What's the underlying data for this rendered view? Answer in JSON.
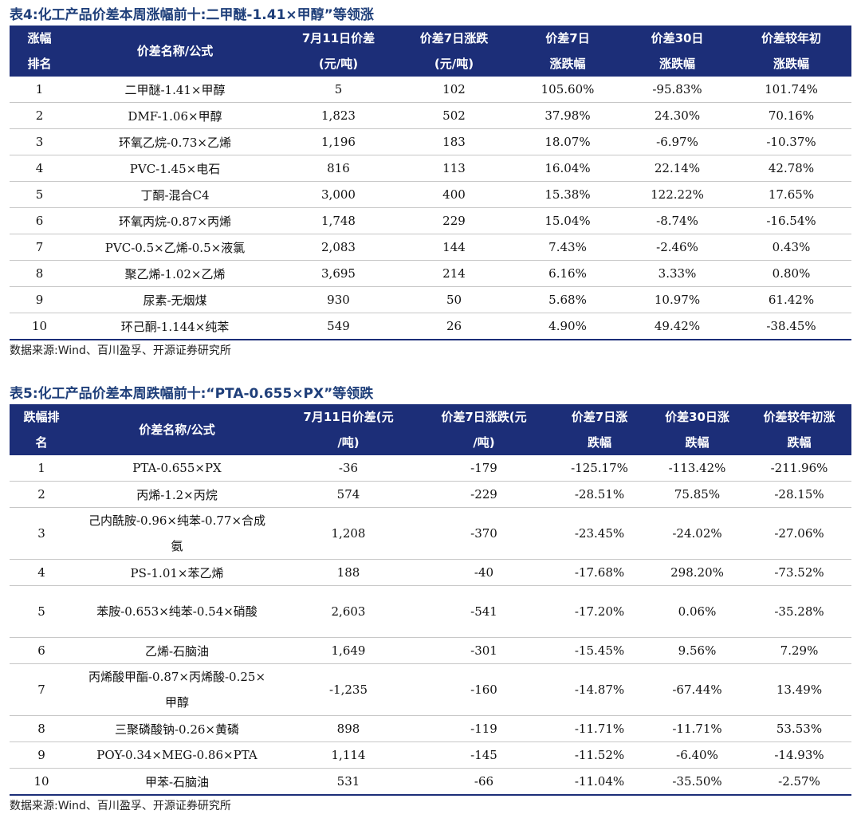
{
  "table4": {
    "caption": "表4:化工产品价差本周涨幅前十:二甲醚-1.41×甲醇”等领涨",
    "headers": {
      "rank_l1": "涨幅",
      "rank_l2": "排名",
      "name": "价差名称/公式",
      "spread_l1": "7月11日价差",
      "spread_l2": "(元/吨)",
      "chg7_l1": "价差7日涨跌",
      "chg7_l2": "(元/吨)",
      "pct7_l1": "价差7日",
      "pct7_l2": "涨跌幅",
      "pct30_l1": "价差30日",
      "pct30_l2": "涨跌幅",
      "ytd_l1": "价差较年初",
      "ytd_l2": "涨跌幅"
    },
    "rows": [
      {
        "rank": "1",
        "name": "二甲醚-1.41×甲醇",
        "spread": "5",
        "chg7": "102",
        "pct7": "105.60%",
        "pct30": "-95.83%",
        "ytd": "101.74%"
      },
      {
        "rank": "2",
        "name": "DMF-1.06×甲醇",
        "spread": "1,823",
        "chg7": "502",
        "pct7": "37.98%",
        "pct30": "24.30%",
        "ytd": "70.16%"
      },
      {
        "rank": "3",
        "name": "环氧乙烷-0.73×乙烯",
        "spread": "1,196",
        "chg7": "183",
        "pct7": "18.07%",
        "pct30": "-6.97%",
        "ytd": "-10.37%"
      },
      {
        "rank": "4",
        "name": "PVC-1.45×电石",
        "spread": "816",
        "chg7": "113",
        "pct7": "16.04%",
        "pct30": "22.14%",
        "ytd": "42.78%"
      },
      {
        "rank": "5",
        "name": "丁酮-混合C4",
        "spread": "3,000",
        "chg7": "400",
        "pct7": "15.38%",
        "pct30": "122.22%",
        "ytd": "17.65%"
      },
      {
        "rank": "6",
        "name": "环氧丙烷-0.87×丙烯",
        "spread": "1,748",
        "chg7": "229",
        "pct7": "15.04%",
        "pct30": "-8.74%",
        "ytd": "-16.54%"
      },
      {
        "rank": "7",
        "name": "PVC-0.5×乙烯-0.5×液氯",
        "spread": "2,083",
        "chg7": "144",
        "pct7": "7.43%",
        "pct30": "-2.46%",
        "ytd": "0.43%"
      },
      {
        "rank": "8",
        "name": "聚乙烯-1.02×乙烯",
        "spread": "3,695",
        "chg7": "214",
        "pct7": "6.16%",
        "pct30": "3.33%",
        "ytd": "0.80%"
      },
      {
        "rank": "9",
        "name": "尿素-无烟煤",
        "spread": "930",
        "chg7": "50",
        "pct7": "5.68%",
        "pct30": "10.97%",
        "ytd": "61.42%"
      },
      {
        "rank": "10",
        "name": "环己酮-1.144×纯苯",
        "spread": "549",
        "chg7": "26",
        "pct7": "4.90%",
        "pct30": "49.42%",
        "ytd": "-38.45%"
      }
    ],
    "source": "数据来源:Wind、百川盈孚、开源证券研究所"
  },
  "table5": {
    "caption": "表5:化工产品价差本周跌幅前十:“PTA-0.655×PX”等领跌",
    "headers": {
      "rank_l1": "跌幅排",
      "rank_l2": "名",
      "name": "价差名称/公式",
      "spread_l1": "7月11日价差(元",
      "spread_l2": "/吨)",
      "chg7_l1": "价差7日涨跌(元",
      "chg7_l2": "/吨)",
      "pct7_l1": "价差7日涨",
      "pct7_l2": "跌幅",
      "pct30_l1": "价差30日涨",
      "pct30_l2": "跌幅",
      "ytd_l1": "价差较年初涨",
      "ytd_l2": "跌幅"
    },
    "rows": [
      {
        "rank": "1",
        "name": "PTA-0.655×PX",
        "spread": "-36",
        "chg7": "-179",
        "pct7": "-125.17%",
        "pct30": "-113.42%",
        "ytd": "-211.96%"
      },
      {
        "rank": "2",
        "name": "丙烯-1.2×丙烷",
        "spread": "574",
        "chg7": "-229",
        "pct7": "-28.51%",
        "pct30": "75.85%",
        "ytd": "-28.15%"
      },
      {
        "rank": "3",
        "name": "己内酰胺-0.96×纯苯-0.77×合成氨",
        "spread": "1,208",
        "chg7": "-370",
        "pct7": "-23.45%",
        "pct30": "-24.02%",
        "ytd": "-27.06%"
      },
      {
        "rank": "4",
        "name": "PS-1.01×苯乙烯",
        "spread": "188",
        "chg7": "-40",
        "pct7": "-17.68%",
        "pct30": "298.20%",
        "ytd": "-73.52%"
      },
      {
        "rank": "5",
        "name": "苯胺-0.653×纯苯-0.54×硝酸",
        "spread": "2,603",
        "chg7": "-541",
        "pct7": "-17.20%",
        "pct30": "0.06%",
        "ytd": "-35.28%"
      },
      {
        "rank": "6",
        "name": "乙烯-石脑油",
        "spread": "1,649",
        "chg7": "-301",
        "pct7": "-15.45%",
        "pct30": "9.56%",
        "ytd": "7.29%"
      },
      {
        "rank": "7",
        "name": "丙烯酸甲酯-0.87×丙烯酸-0.25×甲醇",
        "spread": "-1,235",
        "chg7": "-160",
        "pct7": "-14.87%",
        "pct30": "-67.44%",
        "ytd": "13.49%"
      },
      {
        "rank": "8",
        "name": "三聚磷酸钠-0.26×黄磷",
        "spread": "898",
        "chg7": "-119",
        "pct7": "-11.71%",
        "pct30": "-11.71%",
        "ytd": "53.53%"
      },
      {
        "rank": "9",
        "name": "POY-0.34×MEG-0.86×PTA",
        "spread": "1,114",
        "chg7": "-145",
        "pct7": "-11.52%",
        "pct30": "-6.40%",
        "ytd": "-14.93%"
      },
      {
        "rank": "10",
        "name": "甲苯-石脑油",
        "spread": "531",
        "chg7": "-66",
        "pct7": "-11.04%",
        "pct30": "-35.50%",
        "ytd": "-2.57%"
      }
    ],
    "source": "数据来源:Wind、百川盈孚、开源证券研究所"
  }
}
